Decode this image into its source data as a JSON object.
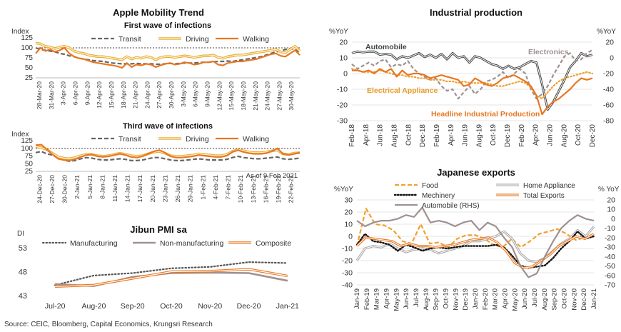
{
  "panels": {
    "mobility_title": "Apple Mobility Trend",
    "industrial_title": "Industrial production",
    "exports_title": "Japanese exports",
    "pmi_title": "Jibun PMI sa",
    "source": "Source: CEIC, Bloomberg, Capital Economics, Krungsri Research",
    "as_of": "As of 9 Feb 2021"
  },
  "colors": {
    "transit": "#666666",
    "driving": "#e8b040",
    "walking": "#e87722",
    "grey": "#a09090",
    "light": "#b8b8b8"
  },
  "chart_data": [
    {
      "id": "first_wave",
      "type": "line",
      "title": "First wave of infections",
      "ylabel": "Index",
      "ylim": [
        25,
        125
      ],
      "yticks": [
        25,
        50,
        75,
        100,
        125
      ],
      "reference_line": 100,
      "legend": "top",
      "x_labels": [
        "28-Mar-20",
        "31-Mar-20",
        "3-Apr-20",
        "6-Apr-20",
        "9-Apr-20",
        "12-Apr-20",
        "15-Apr-20",
        "18-Apr-20",
        "21-Apr-20",
        "24-Apr-20",
        "27-Apr-20",
        "30-Apr-20",
        "3-May-20",
        "6-May-20",
        "9-May-20",
        "12-May-20",
        "15-May-20",
        "18-May-20",
        "21-May-20",
        "24-May-20",
        "27-May-20",
        "30-May-20"
      ],
      "series": [
        {
          "name": "Transit",
          "values": [
            100,
            96,
            94,
            92,
            90,
            86,
            84,
            80,
            78,
            74,
            72,
            70,
            68,
            67,
            66,
            64,
            62,
            61,
            60,
            60,
            60,
            61,
            60,
            60,
            60,
            59,
            59,
            60,
            61,
            60,
            61,
            62,
            62,
            62,
            63,
            64,
            64,
            65,
            66,
            66,
            67,
            66,
            68,
            70,
            72,
            74,
            76,
            78,
            82,
            86,
            90,
            92,
            96,
            98,
            96,
            88
          ]
        },
        {
          "name": "Driving",
          "values": [
            112,
            110,
            104,
            102,
            98,
            102,
            104,
            100,
            92,
            88,
            86,
            82,
            80,
            78,
            78,
            76,
            74,
            72,
            70,
            78,
            72,
            76,
            74,
            78,
            76,
            70,
            76,
            78,
            78,
            76,
            78,
            80,
            78,
            76,
            78,
            80,
            80,
            82,
            76,
            74,
            78,
            80,
            82,
            82,
            84,
            86,
            88,
            90,
            92,
            94,
            96,
            90,
            88,
            96,
            104,
            92
          ]
        },
        {
          "name": "Walking",
          "values": [
            86,
            100,
            92,
            96,
            90,
            94,
            100,
            86,
            78,
            74,
            72,
            68,
            64,
            62,
            60,
            58,
            56,
            54,
            50,
            62,
            52,
            58,
            56,
            60,
            58,
            52,
            56,
            60,
            62,
            58,
            60,
            64,
            62,
            58,
            60,
            64,
            64,
            66,
            58,
            56,
            62,
            64,
            66,
            66,
            68,
            70,
            72,
            76,
            80,
            84,
            86,
            80,
            78,
            86,
            94,
            82
          ]
        }
      ]
    },
    {
      "id": "third_wave",
      "type": "line",
      "title": "Third wave of infections",
      "ylabel": "Index",
      "ylim": [
        25,
        125
      ],
      "yticks": [
        25,
        50,
        75,
        100,
        125
      ],
      "reference_line": 100,
      "legend": "top",
      "x_labels": [
        "24-Dec-20",
        "27-Dec-20",
        "30-Dec-20",
        "2-Jan-21",
        "5-Jan-21",
        "8-Jan-21",
        "11-Jan-21",
        "14-Jan-21",
        "17-Jan-21",
        "20-Jan-21",
        "23-Jan-21",
        "26-Jan-21",
        "29-Jan-21",
        "1-Feb-21",
        "4-Feb-21",
        "7-Feb-21",
        "10-Feb-21",
        "13-Feb-21",
        "16-Feb-21",
        "19-Feb-21",
        "22-Feb-21"
      ],
      "series": [
        {
          "name": "Transit",
          "values": [
            86,
            90,
            82,
            78,
            68,
            62,
            58,
            60,
            66,
            70,
            68,
            64,
            62,
            62,
            64,
            66,
            64,
            60,
            60,
            62,
            66,
            70,
            70,
            66,
            62,
            60,
            60,
            62,
            64,
            66,
            64,
            62,
            62,
            62,
            64,
            70,
            74,
            70,
            68,
            66,
            66,
            68,
            70,
            72,
            66,
            64,
            66,
            68
          ]
        },
        {
          "name": "Driving",
          "values": [
            106,
            102,
            96,
            84,
            72,
            68,
            66,
            70,
            76,
            80,
            80,
            76,
            74,
            76,
            80,
            84,
            80,
            76,
            74,
            76,
            82,
            88,
            90,
            84,
            76,
            74,
            74,
            76,
            78,
            82,
            80,
            78,
            76,
            76,
            80,
            90,
            96,
            92,
            88,
            86,
            86,
            88,
            92,
            94,
            82,
            80,
            84,
            86
          ]
        },
        {
          "name": "Walking",
          "values": [
            110,
            112,
            96,
            80,
            66,
            62,
            60,
            64,
            72,
            78,
            80,
            74,
            72,
            74,
            78,
            82,
            78,
            72,
            70,
            74,
            82,
            90,
            94,
            86,
            74,
            70,
            70,
            72,
            74,
            78,
            76,
            74,
            72,
            72,
            76,
            88,
            94,
            88,
            84,
            82,
            82,
            84,
            90,
            100,
            82,
            78,
            82,
            86
          ]
        }
      ]
    },
    {
      "id": "pmi",
      "type": "line",
      "title": "Jibun PMI sa",
      "ylabel": "DI",
      "ylim": [
        43,
        53
      ],
      "yticks": [
        43,
        48,
        53
      ],
      "legend": "top",
      "x_labels": [
        "Jul-20",
        "Aug-20",
        "Sep-20",
        "Oct-20",
        "Nov-20",
        "Dec-20",
        "Jan-21"
      ],
      "series": [
        {
          "name": "Manufacturing",
          "values": [
            45.2,
            47.2,
            47.7,
            48.7,
            49.0,
            50.0,
            49.8
          ]
        },
        {
          "name": "Non-manufacturing",
          "values": [
            45.4,
            45.0,
            46.9,
            47.7,
            47.8,
            47.7,
            46.1
          ]
        },
        {
          "name": "Composite",
          "values": [
            44.9,
            45.2,
            46.6,
            48.0,
            48.1,
            48.5,
            47.1
          ]
        }
      ]
    },
    {
      "id": "industrial",
      "type": "line",
      "title": "Industrial production",
      "ylabel_left": "%YoY",
      "ylabel_right": "%YoY",
      "ylim_left": [
        -30,
        20
      ],
      "ylim_right": [
        -80,
        20
      ],
      "yticks_left": [
        -30,
        -20,
        -10,
        0,
        10,
        20
      ],
      "yticks_right": [
        -80,
        -60,
        -40,
        -20,
        0,
        20
      ],
      "x_labels": [
        "Feb-18",
        "Apr-18",
        "Jun-18",
        "Aug-18",
        "Oct-18",
        "Dec-18",
        "Feb-19",
        "Apr-19",
        "Jun-19",
        "Aug-19",
        "Oct-19",
        "Dec-19",
        "Feb-20",
        "Apr-20",
        "Jun-20",
        "Aug-20",
        "Oct-20",
        "Dec-20"
      ],
      "series": [
        {
          "name": "Automobile",
          "axis": "right",
          "values": [
            6,
            8,
            7,
            8,
            8,
            4,
            5,
            4,
            -2,
            2,
            0,
            3,
            6,
            1,
            4,
            0,
            5,
            -2,
            6,
            0,
            2,
            -6,
            2,
            0,
            -4,
            -8,
            -10,
            -14,
            -10,
            -14,
            -12,
            -8,
            -4,
            -6,
            -34,
            -66,
            -56,
            -42,
            -28,
            -12,
            -4,
            6,
            2,
            4
          ]
        },
        {
          "name": "Electronics",
          "axis": "right",
          "values": [
            -8,
            -14,
            -10,
            -6,
            -10,
            -4,
            -2,
            -12,
            -8,
            -10,
            -4,
            -14,
            -20,
            -24,
            -28,
            -26,
            -36,
            -42,
            -40,
            -52,
            -44,
            -36,
            -46,
            -40,
            -30,
            -28,
            -24,
            -18,
            -26,
            -20,
            -14,
            -20,
            -40,
            -52,
            -46,
            -36,
            -22,
            -10,
            2,
            6,
            -4,
            -2,
            6,
            10
          ]
        },
        {
          "name": "Electrical Appliance",
          "axis": "left",
          "values": [
            3,
            2,
            1,
            1,
            1,
            2,
            1,
            0,
            -1,
            -1,
            -2,
            -2,
            -3,
            -3,
            -4,
            -4,
            -4,
            -5,
            -5,
            -6,
            -5,
            -6,
            -6,
            -6,
            -6,
            -7,
            -8,
            -8,
            -7,
            -6,
            -5,
            -6,
            -9,
            -14,
            -16,
            -12,
            -8,
            -5,
            -3,
            -2,
            -1,
            0,
            1,
            0
          ]
        },
        {
          "name": "Headline Industrial Production",
          "axis": "left",
          "values": [
            2,
            2,
            1,
            2,
            0,
            3,
            1,
            3,
            -2,
            2,
            -1,
            0,
            0,
            -1,
            -3,
            -2,
            -1,
            -2,
            -3,
            -4,
            -8,
            -7,
            -3,
            -5,
            -7,
            -8,
            -6,
            -3,
            -2,
            -1,
            -3,
            -5,
            -8,
            -14,
            -26,
            -21,
            -18,
            -16,
            -13,
            -10,
            -6,
            -3,
            -4,
            -3
          ]
        }
      ]
    },
    {
      "id": "exports",
      "type": "line",
      "title": "Japanese exports",
      "ylabel_left": "%YoY",
      "ylabel_right": "% YoY",
      "ylim_left": [
        -40,
        30
      ],
      "ylim_right": [
        -70,
        20
      ],
      "yticks_left": [
        -40,
        -30,
        -20,
        -10,
        0,
        10,
        20,
        30
      ],
      "yticks_right": [
        -70,
        -60,
        -50,
        -40,
        -30,
        -20,
        -10,
        0,
        10,
        20
      ],
      "x_labels": [
        "Jan-19",
        "Feb-19",
        "Mar-19",
        "Apr-19",
        "May-19",
        "Jun-19",
        "Jul-19",
        "Aug-19",
        "Sep-19",
        "Oct-19",
        "Nov-19",
        "Dec-19",
        "Jan-20",
        "Feb-20",
        "Mar-20",
        "Apr-20",
        "May-20",
        "Jun-20",
        "Jul-20",
        "Aug-20",
        "Sep-20",
        "Oct-20",
        "Nov-20",
        "Dec-20",
        "Jan-21"
      ],
      "series": [
        {
          "name": "Food",
          "axis": "left",
          "values": [
            -8,
            23,
            10,
            9,
            5,
            -4,
            -6,
            10,
            -6,
            -5,
            -9,
            -2,
            1,
            1,
            -2,
            -7,
            -9,
            -2,
            -9,
            -4,
            2,
            4,
            6,
            2,
            -3,
            -1,
            8
          ]
        },
        {
          "name": "Home Appliance",
          "axis": "left",
          "values": [
            -20,
            -10,
            -8,
            -9,
            -6,
            -10,
            -13,
            -11,
            -10,
            -11,
            -14,
            -12,
            -10,
            -8,
            -4,
            -4,
            -2,
            0,
            4,
            -2,
            -14,
            -20,
            -21,
            -18,
            -12,
            -6,
            -2,
            5,
            0,
            8
          ]
        },
        {
          "name": "Mechinery",
          "axis": "left",
          "values": [
            -7,
            2,
            -4,
            -5,
            -7,
            -12,
            -7,
            -9,
            -12,
            -10,
            -9,
            -10,
            -9,
            -8,
            -8,
            -8,
            -8,
            -7,
            -9,
            -16,
            -24,
            -26,
            -25,
            -24,
            -18,
            -10,
            -4,
            4,
            -2,
            0
          ]
        },
        {
          "name": "Total Exports",
          "axis": "left",
          "values": [
            -8,
            -1,
            -2,
            -3,
            -4,
            -8,
            -6,
            -8,
            -8,
            -9,
            -8,
            -7,
            -5,
            -3,
            -2,
            -1,
            -5,
            -12,
            -22,
            -26,
            -25,
            -20,
            -15,
            -8,
            -4,
            0,
            -2,
            2
          ]
        },
        {
          "name": "Automobile (RHS)",
          "axis": "right",
          "values": [
            -2,
            -8,
            -4,
            -2,
            -2,
            0,
            4,
            2,
            12,
            -4,
            -2,
            -4,
            -8,
            -4,
            -2,
            -12,
            -4,
            -8,
            -20,
            -30,
            -50,
            -62,
            -58,
            -40,
            -24,
            -10,
            -2,
            4,
            0,
            -2
          ]
        }
      ]
    }
  ]
}
